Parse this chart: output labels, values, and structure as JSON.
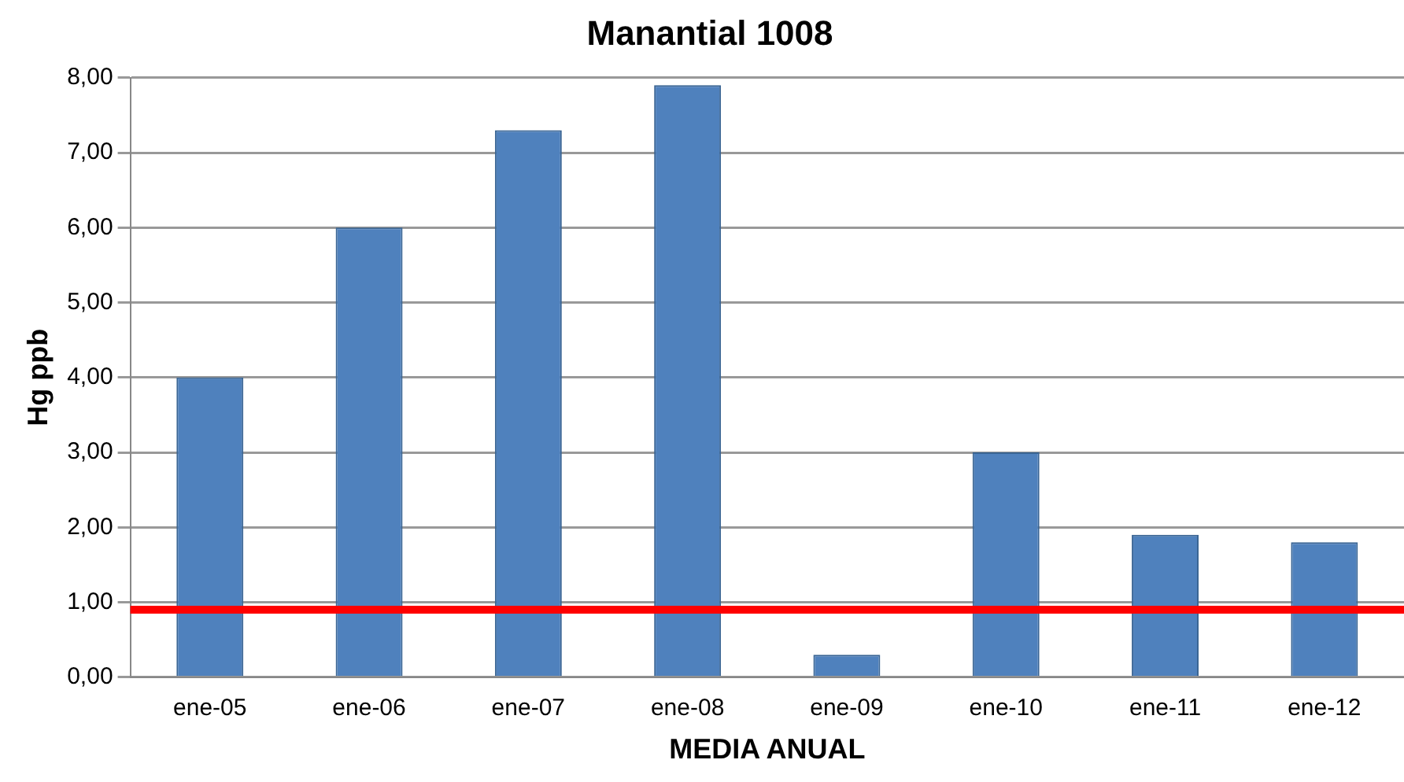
{
  "chart_data": {
    "type": "bar",
    "title": "Manantial 1008",
    "xlabel": "MEDIA ANUAL",
    "ylabel": "Hg ppb",
    "categories": [
      "ene-05",
      "ene-06",
      "ene-07",
      "ene-08",
      "ene-09",
      "ene-10",
      "ene-11",
      "ene-12"
    ],
    "values": [
      4.0,
      6.0,
      7.3,
      7.9,
      0.3,
      3.0,
      1.9,
      1.8
    ],
    "color": "#4f81bd",
    "ylim": [
      0,
      8
    ],
    "yticks": [
      {
        "value": 0,
        "label": "0,00"
      },
      {
        "value": 1,
        "label": "1,00"
      },
      {
        "value": 2,
        "label": "2,00"
      },
      {
        "value": 3,
        "label": "3,00"
      },
      {
        "value": 4,
        "label": "4,00"
      },
      {
        "value": 5,
        "label": "5,00"
      },
      {
        "value": 6,
        "label": "6,00"
      },
      {
        "value": 7,
        "label": "7,00"
      },
      {
        "value": 8,
        "label": "8,00"
      }
    ],
    "grid": "y",
    "ref_lines": [
      {
        "axis": "y",
        "value": 0.9,
        "color": "#ff0000"
      }
    ]
  }
}
